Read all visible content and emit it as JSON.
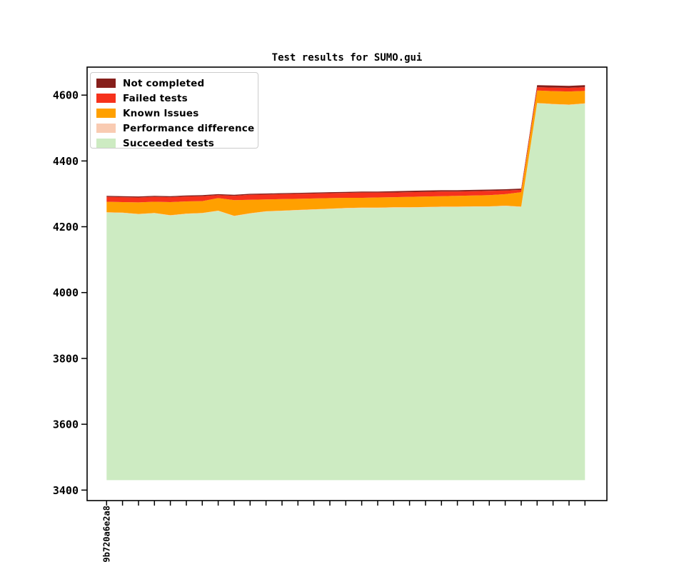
{
  "figure": {
    "background_color": "#ffffff",
    "title": "Test results for SUMO.gui"
  },
  "chart_data": {
    "type": "area",
    "stacked": true,
    "title": "Test results for SUMO.gui",
    "xlabel": "",
    "ylabel": "",
    "categories": [
      "9b720a6e2a8",
      "",
      "",
      "",
      "",
      "",
      "",
      "",
      "",
      "",
      "",
      "",
      "",
      "",
      "",
      "",
      "",
      "",
      "",
      "",
      "",
      "",
      "",
      "",
      "",
      "",
      "",
      "",
      "",
      "",
      ""
    ],
    "series": [
      {
        "name": "Not completed",
        "color": "#861f1b",
        "values": [
          3,
          3,
          3,
          3,
          3,
          3,
          3,
          3,
          3,
          3,
          3,
          3,
          3,
          3,
          3,
          3,
          3,
          3,
          4,
          4,
          4,
          4,
          4,
          4,
          4,
          4,
          4,
          6,
          6,
          6,
          6
        ]
      },
      {
        "name": "Failed tests",
        "color": "#f6321c",
        "values": [
          15,
          15,
          15,
          15,
          15,
          15,
          15,
          9,
          13,
          15,
          15,
          15,
          15,
          15,
          15,
          15,
          16,
          15,
          14,
          14,
          14,
          14,
          13,
          13,
          13,
          11,
          7,
          10,
          11,
          11,
          11
        ]
      },
      {
        "name": "Known Issues",
        "color": "#ffa000",
        "values": [
          32,
          32,
          35,
          34,
          40,
          37,
          36,
          38,
          48,
          41,
          36,
          35,
          34,
          33,
          32,
          31,
          30,
          31,
          31,
          32,
          32,
          32,
          33,
          33,
          34,
          35,
          44,
          38,
          39,
          40,
          38
        ]
      },
      {
        "name": "Performance difference",
        "color": "#f9cbb2",
        "values": [
          1,
          1,
          1,
          1,
          1,
          1,
          1,
          1,
          1,
          1,
          1,
          1,
          1,
          1,
          1,
          1,
          1,
          1,
          1,
          1,
          1,
          1,
          1,
          1,
          1,
          1,
          1,
          1,
          1,
          1,
          1
        ]
      },
      {
        "name": "Succeeded tests",
        "color": "#cdebc2",
        "values": [
          813,
          812,
          808,
          811,
          804,
          809,
          811,
          818,
          802,
          810,
          816,
          818,
          820,
          822,
          824,
          826,
          827,
          827,
          828,
          828,
          829,
          830,
          830,
          831,
          831,
          833,
          830,
          1145,
          1142,
          1140,
          1144
        ]
      }
    ],
    "axes": {
      "baseline": 3430,
      "ylim": [
        3368,
        4685
      ],
      "yticks": [
        3400,
        3600,
        3800,
        4000,
        4200,
        4400,
        4600
      ],
      "x_tick_count": 31,
      "grid": false,
      "legend_position": "upper left",
      "axis_color": "#000000"
    }
  }
}
